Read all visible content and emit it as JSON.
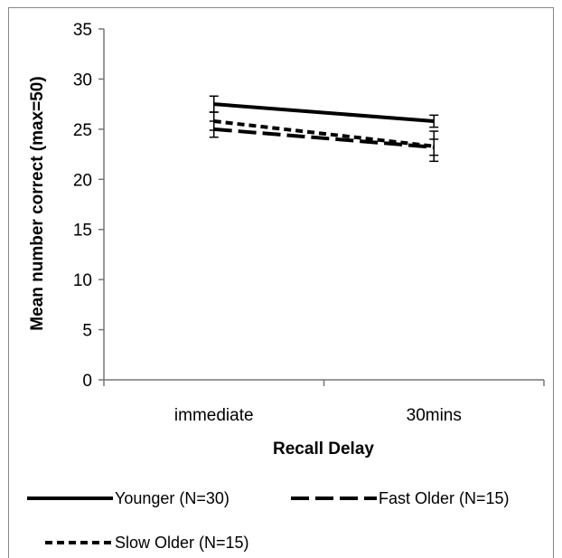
{
  "chart_data": {
    "type": "line",
    "title": "",
    "xlabel": "Recall Delay",
    "ylabel": "Mean number correct (max=50)",
    "categories": [
      "immediate",
      "30mins"
    ],
    "ylim": [
      0,
      35
    ],
    "yticks": [
      0,
      5,
      10,
      15,
      20,
      25,
      30,
      35
    ],
    "grid": false,
    "legend_position": "bottom",
    "series": [
      {
        "name": "Younger (N=30)",
        "values": [
          27.5,
          25.8
        ],
        "error": [
          0.8,
          0.6
        ],
        "dash": "solid",
        "color": "#000000"
      },
      {
        "name": "Fast Older (N=15)",
        "values": [
          25.0,
          23.2
        ],
        "error": [
          0.8,
          0.8
        ],
        "dash": "long-dash",
        "color": "#000000"
      },
      {
        "name": "Slow Older (N=15)",
        "values": [
          25.8,
          23.3
        ],
        "error": [
          0.9,
          1.5
        ],
        "dash": "short-dash",
        "color": "#000000"
      }
    ]
  }
}
